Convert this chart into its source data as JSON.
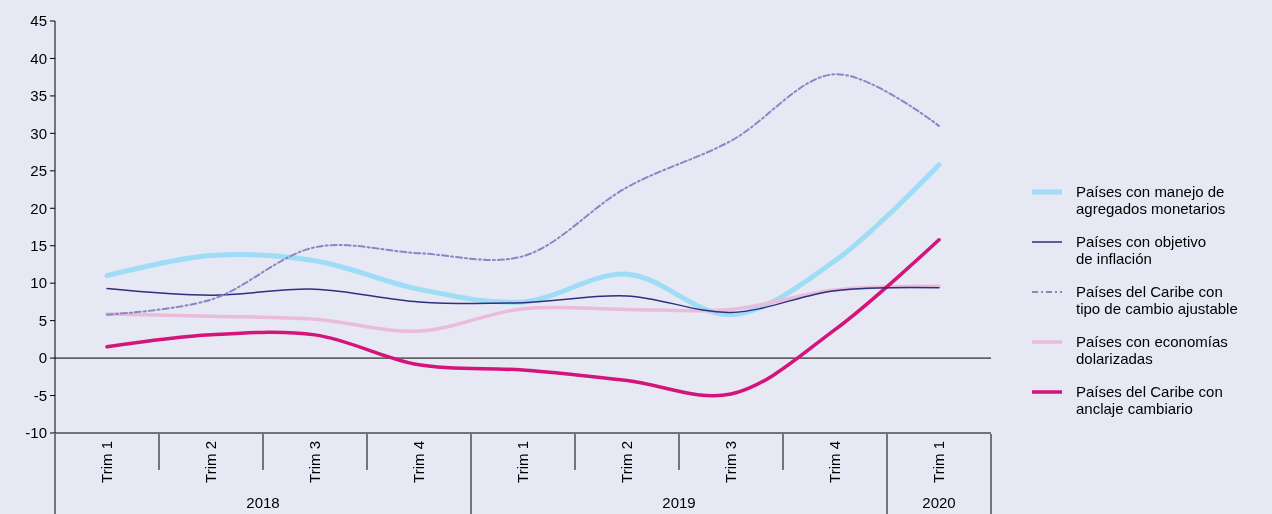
{
  "chart_data": {
    "type": "line",
    "categories": [
      "Trim 1",
      "Trim 2",
      "Trim 3",
      "Trim 4",
      "Trim 1",
      "Trim 2",
      "Trim 3",
      "Trim 4",
      "Trim 1"
    ],
    "annotations": [
      "2018",
      "2019",
      "2020"
    ],
    "series": [
      {
        "name": "Países con manejo de agregados monetarios",
        "color": "#9fdcf5",
        "values": [
          11,
          13.7,
          13,
          9.2,
          7.5,
          11.2,
          5.8,
          13,
          25.8
        ]
      },
      {
        "name": "Países con objetivo de inflación",
        "color": "#2e2f7e",
        "values": [
          9.3,
          8.4,
          9.2,
          7.5,
          7.4,
          8.3,
          6.1,
          9,
          9.4
        ]
      },
      {
        "name": "Países del Caribe con tipo de cambio ajustable",
        "color": "#8a86c6",
        "line_style": "dashed",
        "values": [
          5.8,
          7.8,
          14.8,
          14,
          13.6,
          22.8,
          29,
          37.9,
          31
        ]
      },
      {
        "name": "Países con economías dolarizadas",
        "color": "#e9bcdc",
        "values": [
          5.9,
          5.6,
          5.2,
          3.6,
          6.6,
          6.5,
          6.5,
          9.1,
          9.6
        ]
      },
      {
        "name": "Países del Caribe con anclaje cambiario",
        "color": "#d4147a",
        "values": [
          1.5,
          3.1,
          3.1,
          -0.9,
          -1.6,
          -3,
          -4.8,
          3.8,
          15.8
        ]
      }
    ],
    "ylim": [
      -10,
      45
    ],
    "yticks": [
      -10,
      -5,
      0,
      5,
      10,
      15,
      20,
      25,
      30,
      35,
      40,
      45
    ],
    "legend": "right",
    "marker": "none",
    "line_style": "solid"
  }
}
